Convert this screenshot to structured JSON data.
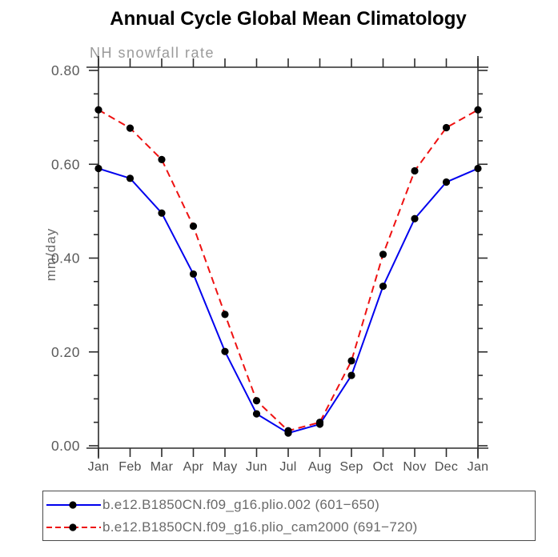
{
  "title": "Annual Cycle Global Mean Climatology",
  "subtitle": "NH snowfall rate",
  "chart_data": {
    "type": "line",
    "title": "Annual Cycle Global Mean Climatology",
    "subtitle": "NH snowfall rate",
    "xlabel": "",
    "ylabel": "mm/day",
    "x_categories": [
      "Jan",
      "Feb",
      "Mar",
      "Apr",
      "May",
      "Jun",
      "Jul",
      "Aug",
      "Sep",
      "Oct",
      "Nov",
      "Dec",
      "Jan"
    ],
    "ylim": [
      0.0,
      0.8
    ],
    "ytick_labels": [
      "0.00",
      "0.20",
      "0.40",
      "0.60",
      "0.80"
    ],
    "ytick_values": [
      0.0,
      0.2,
      0.4,
      0.6,
      0.8
    ],
    "yminor_step": 0.05,
    "grid": false,
    "legend_position": "bottom-box",
    "series": [
      {
        "name": "b.e12.B1850CN.f09_g16.plio.002 (601−650)",
        "color": "#0000ee",
        "line_style": "solid",
        "marker": "filled-circle",
        "marker_color": "#000000",
        "values": [
          0.591,
          0.57,
          0.496,
          0.366,
          0.201,
          0.068,
          0.027,
          0.046,
          0.15,
          0.34,
          0.484,
          0.562,
          0.591
        ]
      },
      {
        "name": "b.e12.B1850CN.f09_g16.plio_cam2000 (691−720)",
        "color": "#ee1111",
        "line_style": "dashed",
        "marker": "filled-circle",
        "marker_color": "#000000",
        "values": [
          0.716,
          0.677,
          0.61,
          0.468,
          0.28,
          0.096,
          0.032,
          0.05,
          0.181,
          0.408,
          0.586,
          0.678,
          0.716
        ]
      }
    ]
  },
  "colors": {
    "axis": "#2b2b2b",
    "tick_label_gray": "#5a5a5a",
    "month_label_gray": "#4f4f4f",
    "subtitle_gray": "#9a9a9a",
    "legend_text_gray": "#6a6a6a",
    "background": "#ffffff"
  }
}
